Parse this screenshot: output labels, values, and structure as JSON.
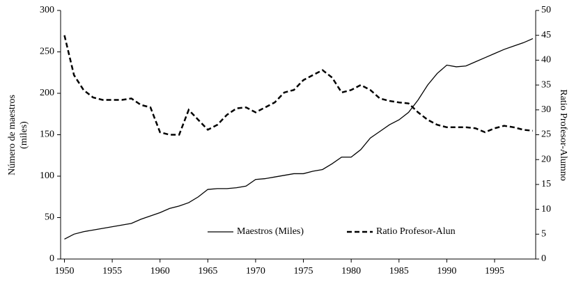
{
  "chart_data": {
    "type": "line",
    "ylabel": [
      "Número de maestros",
      "(miles)"
    ],
    "y2label": "Ratio Profesor-Alumno",
    "x": [
      1950,
      1951,
      1952,
      1953,
      1954,
      1955,
      1956,
      1957,
      1958,
      1959,
      1960,
      1961,
      1962,
      1963,
      1964,
      1965,
      1966,
      1967,
      1968,
      1969,
      1970,
      1971,
      1972,
      1973,
      1974,
      1975,
      1976,
      1977,
      1978,
      1979,
      1980,
      1981,
      1982,
      1983,
      1984,
      1985,
      1986,
      1987,
      1988,
      1989,
      1990,
      1991,
      1992,
      1993,
      1994,
      1995,
      1996,
      1997,
      1998,
      1999
    ],
    "series": [
      {
        "name": "Maestros (Miles)",
        "color": "#000000",
        "dash": false,
        "values": [
          24,
          30,
          33,
          35,
          37,
          39,
          41,
          43,
          48,
          52,
          56,
          61,
          64,
          68,
          75,
          84,
          85,
          85,
          86,
          88,
          96,
          97,
          99,
          101,
          103,
          103,
          106,
          108,
          115,
          123,
          123,
          132,
          146,
          154,
          162,
          168,
          177,
          192,
          210,
          224,
          234,
          232,
          233,
          238,
          243,
          248,
          253,
          257,
          261,
          266
        ]
      },
      {
        "name": "Ratio Profesor-Alun",
        "color": "#000000",
        "dash": true,
        "axis": "y2",
        "values": [
          45,
          37,
          34,
          32.5,
          32,
          32,
          32,
          32.3,
          31,
          30.5,
          25.5,
          25,
          25,
          30,
          28,
          26,
          27,
          29,
          30.3,
          30.5,
          29.5,
          30.5,
          31.5,
          33.5,
          34,
          36,
          37,
          38,
          36.5,
          33.5,
          34,
          35,
          34,
          32.3,
          31.8,
          31.5,
          31.3,
          29.5,
          28,
          27,
          26.5,
          26.5,
          26.5,
          26.3,
          25.5,
          26.3,
          26.8,
          26.5,
          26,
          25.8
        ]
      }
    ],
    "xlim": [
      1949.6,
      1999.3
    ],
    "xticks": [
      1950,
      1955,
      1960,
      1965,
      1970,
      1975,
      1980,
      1985,
      1990,
      1995
    ],
    "ylim": [
      0,
      300
    ],
    "yticks": [
      0,
      50,
      100,
      150,
      200,
      250,
      300
    ],
    "y2lim": [
      0,
      50
    ],
    "y2ticks": [
      0,
      5,
      10,
      15,
      20,
      25,
      30,
      35,
      40,
      45,
      50
    ]
  }
}
